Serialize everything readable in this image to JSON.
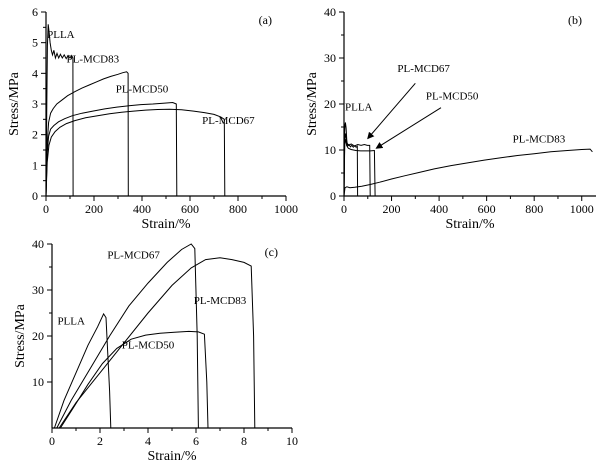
{
  "figure": {
    "background": "#ffffff",
    "line_color": "#000000"
  },
  "chart_data": [
    {
      "id": "a",
      "type": "line",
      "panel_label": "(a)",
      "xlabel": "Strain/%",
      "ylabel": "Stress/MPa",
      "xlim": [
        0,
        1000
      ],
      "ylim": [
        0,
        6
      ],
      "xticks": [
        0,
        200,
        400,
        600,
        800,
        1000
      ],
      "yticks": [
        0,
        1,
        2,
        3,
        4,
        5,
        6
      ],
      "grid": false,
      "series": [
        {
          "name": "PLLA",
          "points": [
            [
              0,
              0
            ],
            [
              3,
              2.6
            ],
            [
              6,
              4.9
            ],
            [
              9,
              5.6
            ],
            [
              13,
              5.35
            ],
            [
              17,
              5.0
            ],
            [
              22,
              4.75
            ],
            [
              27,
              4.6
            ],
            [
              33,
              4.75
            ],
            [
              39,
              4.5
            ],
            [
              46,
              4.65
            ],
            [
              53,
              4.5
            ],
            [
              60,
              4.62
            ],
            [
              68,
              4.5
            ],
            [
              76,
              4.6
            ],
            [
              84,
              4.48
            ],
            [
              92,
              4.58
            ],
            [
              100,
              4.5
            ],
            [
              107,
              4.58
            ],
            [
              112,
              4.5
            ],
            [
              113,
              0
            ]
          ]
        },
        {
          "name": "PL-MCD83",
          "points": [
            [
              0,
              0
            ],
            [
              5,
              1.7
            ],
            [
              11,
              2.4
            ],
            [
              19,
              2.7
            ],
            [
              30,
              2.85
            ],
            [
              45,
              3.0
            ],
            [
              65,
              3.12
            ],
            [
              90,
              3.27
            ],
            [
              120,
              3.4
            ],
            [
              150,
              3.52
            ],
            [
              180,
              3.62
            ],
            [
              210,
              3.72
            ],
            [
              240,
              3.82
            ],
            [
              270,
              3.9
            ],
            [
              300,
              3.97
            ],
            [
              320,
              4.02
            ],
            [
              336,
              4.05
            ],
            [
              342,
              4.0
            ],
            [
              343,
              0
            ]
          ]
        },
        {
          "name": "PL-MCD50",
          "points": [
            [
              0,
              0
            ],
            [
              5,
              1.4
            ],
            [
              11,
              1.95
            ],
            [
              19,
              2.18
            ],
            [
              33,
              2.3
            ],
            [
              52,
              2.42
            ],
            [
              78,
              2.52
            ],
            [
              110,
              2.62
            ],
            [
              150,
              2.7
            ],
            [
              195,
              2.77
            ],
            [
              245,
              2.84
            ],
            [
              295,
              2.9
            ],
            [
              345,
              2.94
            ],
            [
              395,
              2.98
            ],
            [
              445,
              3.0
            ],
            [
              495,
              3.03
            ],
            [
              528,
              3.05
            ],
            [
              543,
              3.0
            ],
            [
              545,
              0
            ]
          ]
        },
        {
          "name": "PL-MCD67",
          "points": [
            [
              0,
              0
            ],
            [
              5,
              1.1
            ],
            [
              12,
              1.65
            ],
            [
              22,
              1.92
            ],
            [
              38,
              2.1
            ],
            [
              58,
              2.24
            ],
            [
              85,
              2.36
            ],
            [
              120,
              2.46
            ],
            [
              165,
              2.55
            ],
            [
              215,
              2.62
            ],
            [
              265,
              2.68
            ],
            [
              315,
              2.73
            ],
            [
              365,
              2.77
            ],
            [
              415,
              2.8
            ],
            [
              465,
              2.82
            ],
            [
              515,
              2.83
            ],
            [
              565,
              2.81
            ],
            [
              615,
              2.77
            ],
            [
              660,
              2.72
            ],
            [
              700,
              2.66
            ],
            [
              728,
              2.58
            ],
            [
              743,
              2.5
            ],
            [
              745,
              0
            ]
          ]
        }
      ],
      "annotations": [
        {
          "text": "PLLA",
          "x": 62,
          "y": 5.15
        },
        {
          "text": "PL-MCD83",
          "x": 195,
          "y": 4.35
        },
        {
          "text": "PL-MCD50",
          "x": 400,
          "y": 3.38
        },
        {
          "text": "PL-MCD67",
          "x": 760,
          "y": 2.35
        }
      ]
    },
    {
      "id": "b",
      "type": "line",
      "panel_label": "(b)",
      "xlabel": "Strain/%",
      "ylabel": "Stress/MPa",
      "xlim": [
        0,
        1060
      ],
      "ylim": [
        0,
        40
      ],
      "xticks": [
        0,
        200,
        400,
        600,
        800,
        1000
      ],
      "yticks": [
        0,
        10,
        20,
        30,
        40
      ],
      "grid": false,
      "series": [
        {
          "name": "PLLA",
          "points": [
            [
              0,
              0
            ],
            [
              2,
              13
            ],
            [
              4,
              15.5
            ],
            [
              6,
              16
            ],
            [
              9,
              14.8
            ],
            [
              12,
              11.6
            ],
            [
              16,
              10.9
            ],
            [
              21,
              11.2
            ],
            [
              27,
              10.7
            ],
            [
              33,
              11.0
            ],
            [
              39,
              10.6
            ],
            [
              45,
              10.9
            ],
            [
              51,
              10.6
            ],
            [
              56,
              10.8
            ],
            [
              57,
              0
            ]
          ]
        },
        {
          "name": "PL-MCD67",
          "points": [
            [
              0,
              0
            ],
            [
              3,
              12.3
            ],
            [
              6,
              13.6
            ],
            [
              9,
              12.6
            ],
            [
              14,
              11.4
            ],
            [
              20,
              11.0
            ],
            [
              30,
              11.3
            ],
            [
              44,
              10.9
            ],
            [
              58,
              11.2
            ],
            [
              72,
              11.0
            ],
            [
              86,
              11.2
            ],
            [
              98,
              11.0
            ],
            [
              108,
              11.0
            ],
            [
              110,
              0
            ]
          ]
        },
        {
          "name": "PL-MCD50",
          "points": [
            [
              0,
              0
            ],
            [
              3,
              11.2
            ],
            [
              7,
              12.4
            ],
            [
              11,
              11.0
            ],
            [
              18,
              10.4
            ],
            [
              30,
              10.1
            ],
            [
              50,
              9.9
            ],
            [
              70,
              9.8
            ],
            [
              92,
              9.8
            ],
            [
              112,
              9.8
            ],
            [
              128,
              9.9
            ],
            [
              131,
              0
            ]
          ]
        },
        {
          "name": "PL-MCD83",
          "points": [
            [
              0,
              0
            ],
            [
              4,
              1.8
            ],
            [
              12,
              2.0
            ],
            [
              25,
              1.8
            ],
            [
              45,
              1.9
            ],
            [
              75,
              2.1
            ],
            [
              110,
              2.5
            ],
            [
              150,
              3.0
            ],
            [
              200,
              3.7
            ],
            [
              255,
              4.4
            ],
            [
              315,
              5.1
            ],
            [
              380,
              5.9
            ],
            [
              450,
              6.6
            ],
            [
              520,
              7.2
            ],
            [
              590,
              7.8
            ],
            [
              660,
              8.3
            ],
            [
              730,
              8.8
            ],
            [
              800,
              9.2
            ],
            [
              870,
              9.6
            ],
            [
              940,
              9.9
            ],
            [
              1000,
              10.1
            ],
            [
              1035,
              10.2
            ],
            [
              1045,
              9.6
            ]
          ]
        }
      ],
      "annotations": [
        {
          "text": "PL-MCD67",
          "x": 335,
          "y": 27,
          "arrow": [
            300,
            24.5,
            100,
            12.5
          ]
        },
        {
          "text": "PL-MCD50",
          "x": 455,
          "y": 21,
          "arrow": [
            408,
            19.2,
            136,
            10.4
          ]
        },
        {
          "text": "PLLA",
          "x": 62,
          "y": 18.6
        },
        {
          "text": "PL-MCD83",
          "x": 820,
          "y": 11.6
        }
      ]
    },
    {
      "id": "c",
      "type": "line",
      "panel_label": "(c)",
      "xlabel": "Strain/%",
      "ylabel": "Stress/MPa",
      "xlim": [
        0,
        10
      ],
      "ylim": [
        0,
        40
      ],
      "xticks": [
        0,
        2,
        4,
        6,
        8,
        10
      ],
      "yticks": [
        10,
        20,
        30,
        40
      ],
      "grid": false,
      "series": [
        {
          "name": "PLLA",
          "points": [
            [
              0.1,
              0
            ],
            [
              0.5,
              6
            ],
            [
              1.0,
              12
            ],
            [
              1.5,
              18
            ],
            [
              1.9,
              22
            ],
            [
              2.15,
              24.8
            ],
            [
              2.25,
              24
            ],
            [
              2.4,
              8
            ],
            [
              2.45,
              0
            ]
          ]
        },
        {
          "name": "PL-MCD67",
          "points": [
            [
              0.2,
              0
            ],
            [
              0.8,
              6
            ],
            [
              1.6,
              13
            ],
            [
              2.4,
              20
            ],
            [
              3.2,
              26.5
            ],
            [
              4.0,
              31.5
            ],
            [
              4.8,
              36
            ],
            [
              5.4,
              38.8
            ],
            [
              5.8,
              40
            ],
            [
              5.95,
              39
            ],
            [
              6.05,
              20
            ],
            [
              6.1,
              0
            ]
          ]
        },
        {
          "name": "PL-MCD83",
          "points": [
            [
              0.3,
              0
            ],
            [
              1.0,
              5.5
            ],
            [
              2.0,
              12
            ],
            [
              3.0,
              18.5
            ],
            [
              4.0,
              25
            ],
            [
              5.0,
              31
            ],
            [
              5.8,
              34.8
            ],
            [
              6.4,
              36.6
            ],
            [
              7.0,
              37
            ],
            [
              7.5,
              36.6
            ],
            [
              8.0,
              36
            ],
            [
              8.3,
              35.2
            ],
            [
              8.4,
              20
            ],
            [
              8.45,
              0
            ]
          ]
        },
        {
          "name": "PL-MCD50",
          "points": [
            [
              0.35,
              0
            ],
            [
              0.9,
              4.5
            ],
            [
              1.5,
              9.5
            ],
            [
              2.1,
              14
            ],
            [
              2.7,
              17.3
            ],
            [
              3.3,
              19.3
            ],
            [
              3.9,
              20.2
            ],
            [
              4.5,
              20.6
            ],
            [
              5.1,
              20.8
            ],
            [
              5.7,
              21
            ],
            [
              6.1,
              20.9
            ],
            [
              6.35,
              20.4
            ],
            [
              6.45,
              10
            ],
            [
              6.5,
              0
            ]
          ]
        }
      ],
      "annotations": [
        {
          "text": "PL-MCD67",
          "x": 3.4,
          "y": 36.8
        },
        {
          "text": "PLLA",
          "x": 0.8,
          "y": 22.5
        },
        {
          "text": "PL-MCD83",
          "x": 7.0,
          "y": 27
        },
        {
          "text": "PL-MCD50",
          "x": 4.0,
          "y": 17.3
        }
      ]
    }
  ]
}
